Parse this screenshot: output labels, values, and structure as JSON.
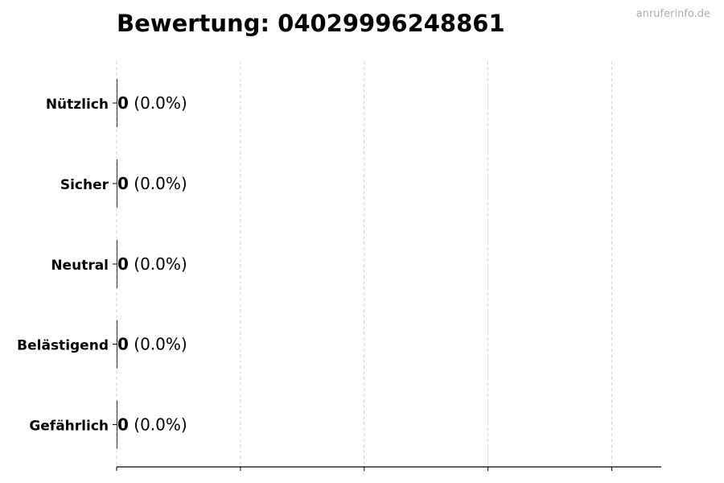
{
  "watermark": "anruferinfo.de",
  "chart_data": {
    "type": "bar",
    "orientation": "horizontal",
    "title": "Bewertung: 04029996248861",
    "categories": [
      "Nützlich",
      "Sicher",
      "Neutral",
      "Belästigend",
      "Gefährlich"
    ],
    "values": [
      0,
      0,
      0,
      0,
      0
    ],
    "percent_labels": [
      "(0.0%)",
      "(0.0%)",
      "(0.0%)",
      "(0.0%)",
      "(0.0%)"
    ],
    "xlim": [
      0,
      4.4
    ],
    "xticks": [
      0,
      1,
      2,
      3,
      4
    ],
    "xtick_labels_shown": false,
    "grid": "x dashed",
    "bar_color": "#000000"
  }
}
